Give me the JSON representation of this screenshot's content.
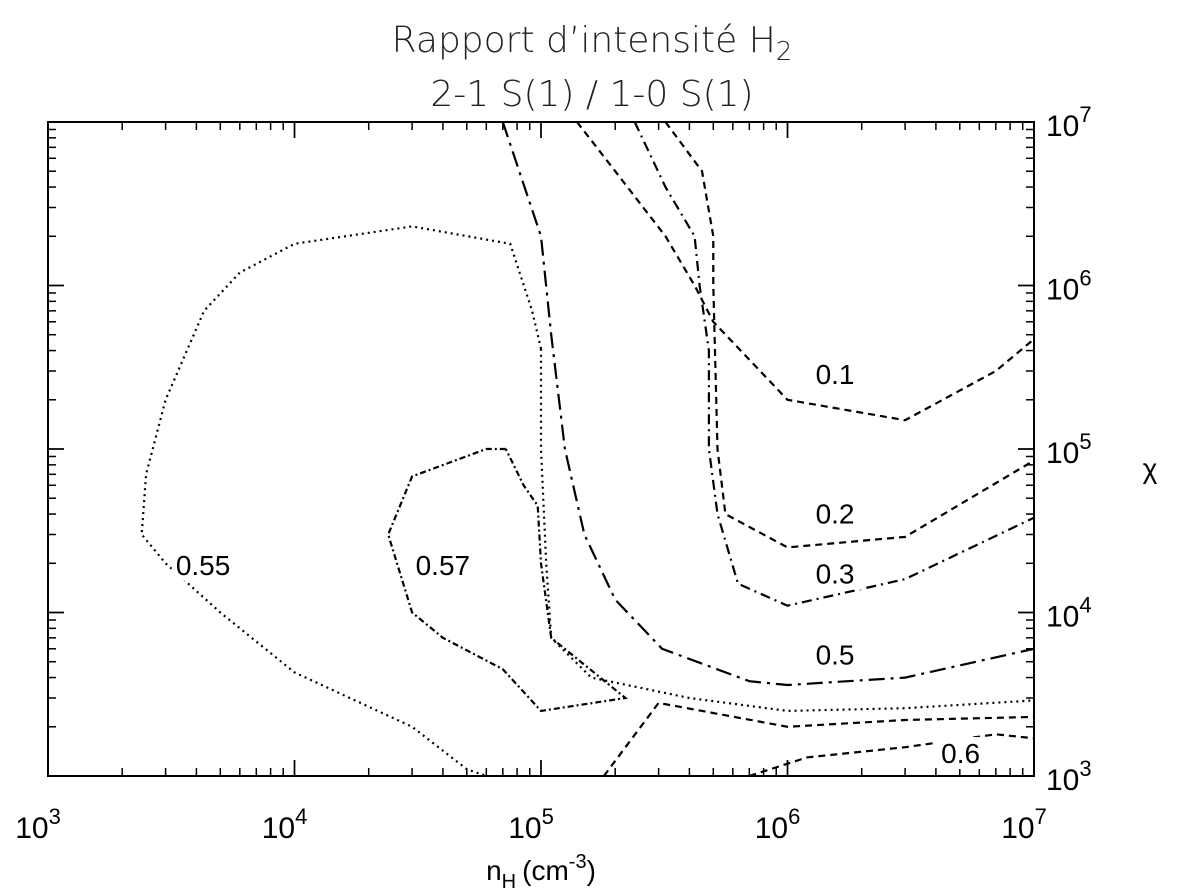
{
  "chart_data": {
    "type": "contour",
    "title": "Rapport d’intensité H",
    "title_subscript": "2",
    "subtitle": "2-1 S(1) / 1-0 S(1)",
    "xlabel": "n",
    "xlabel_subscript": "H",
    "xlabel_unit": "(cm",
    "xlabel_unit_exp": "-3",
    "xlabel_unit_close": ")",
    "ylabel": "χ",
    "xscale": "log",
    "yscale": "log",
    "xlim": [
      1000,
      10000000
    ],
    "ylim": [
      1000,
      10000000
    ],
    "x_ticks": [
      {
        "value": 1000,
        "base": "10",
        "exp": "3"
      },
      {
        "value": 10000,
        "base": "10",
        "exp": "4"
      },
      {
        "value": 100000,
        "base": "10",
        "exp": "5"
      },
      {
        "value": 1000000,
        "base": "10",
        "exp": "6"
      },
      {
        "value": 10000000,
        "base": "10",
        "exp": "7"
      }
    ],
    "y_ticks": [
      {
        "value": 1000,
        "base": "10",
        "exp": "3"
      },
      {
        "value": 10000,
        "base": "10",
        "exp": "4"
      },
      {
        "value": 100000,
        "base": "10",
        "exp": "5"
      },
      {
        "value": 1000000,
        "base": "10",
        "exp": "6"
      },
      {
        "value": 10000000,
        "base": "10",
        "exp": "7"
      }
    ],
    "y_axis_side": "right",
    "grid": false,
    "contours": [
      {
        "level": "0.1",
        "style": "dashed",
        "points": [
          [
            140000,
            10000000
          ],
          [
            200000,
            5000000
          ],
          [
            320000,
            2000000
          ],
          [
            420000,
            1000000
          ],
          [
            500000,
            600000
          ],
          [
            1000000,
            200000
          ],
          [
            3000000,
            150000
          ],
          [
            7000000,
            300000
          ],
          [
            10000000,
            470000
          ]
        ],
        "label": {
          "text": "0.1",
          "x": 1300000,
          "y": 250000
        }
      },
      {
        "level": "0.2",
        "style": "dashed",
        "points": [
          [
            320000,
            10000000
          ],
          [
            450000,
            5000000
          ],
          [
            500000,
            2000000
          ],
          [
            500000,
            1000000
          ],
          [
            520000,
            100000
          ],
          [
            560000,
            40000
          ],
          [
            1000000,
            25000
          ],
          [
            3000000,
            29000
          ],
          [
            10000000,
            85000
          ]
        ],
        "label": {
          "text": "0.2",
          "x": 1300000,
          "y": 35000
        }
      },
      {
        "level": "0.3",
        "style": "dashdot",
        "points": [
          [
            240000,
            10000000
          ],
          [
            320000,
            4000000
          ],
          [
            420000,
            2000000
          ],
          [
            440000,
            1000000
          ],
          [
            480000,
            400000
          ],
          [
            480000,
            100000
          ],
          [
            520000,
            40000
          ],
          [
            630000,
            15000
          ],
          [
            1000000,
            11000
          ],
          [
            3000000,
            16000
          ],
          [
            10000000,
            38000
          ]
        ],
        "label": {
          "text": "0.3",
          "x": 1300000,
          "y": 15000
        }
      },
      {
        "level": "0.5",
        "style": "dashdotlong",
        "points": [
          [
            70000,
            10000000
          ],
          [
            100000,
            2000000
          ],
          [
            110000,
            500000
          ],
          [
            125000,
            100000
          ],
          [
            150000,
            30000
          ],
          [
            200000,
            12000
          ],
          [
            310000,
            6000
          ],
          [
            700000,
            3800
          ],
          [
            1000000,
            3600
          ],
          [
            3000000,
            4000
          ],
          [
            10000000,
            6000
          ]
        ],
        "label": {
          "text": "0.5",
          "x": 1300000,
          "y": 4800
        }
      },
      {
        "level": "0.55",
        "style": "dotted",
        "points": [
          [
            100000,
            410000
          ],
          [
            92000,
            700000
          ],
          [
            75000,
            1800000
          ],
          [
            30000,
            2300000
          ],
          [
            10000,
            1800000
          ],
          [
            6000,
            1200000
          ],
          [
            4300,
            700000
          ],
          [
            3000,
            200000
          ],
          [
            2500,
            70000
          ],
          [
            2400,
            30000
          ],
          [
            3000,
            20000
          ],
          [
            5000,
            10000
          ],
          [
            10000,
            4300
          ],
          [
            30000,
            2000
          ],
          [
            50000,
            1100
          ],
          [
            60000,
            1000
          ]
        ],
        "closing_points": [
          [
            100000,
            410000
          ],
          [
            100000,
            100000
          ],
          [
            105000,
            20000
          ],
          [
            110000,
            7000
          ],
          [
            160000,
            4000
          ],
          [
            400000,
            3000
          ],
          [
            1000000,
            2500
          ],
          [
            3000000,
            2600
          ],
          [
            10000000,
            2900
          ]
        ],
        "label": {
          "text": "0.55",
          "x": 3300,
          "y": 17000
        }
      },
      {
        "level": "0.57",
        "style": "dashdotdense",
        "points": [
          [
            72000,
            100000
          ],
          [
            60000,
            100000
          ],
          [
            30000,
            68000
          ],
          [
            24000,
            30000
          ],
          [
            30000,
            10000
          ],
          [
            40000,
            7000
          ],
          [
            70000,
            4500
          ],
          [
            100000,
            2500
          ],
          [
            220000,
            3000
          ],
          [
            110000,
            7000
          ],
          [
            100000,
            20000
          ],
          [
            97000,
            45000
          ],
          [
            85000,
            60000
          ],
          [
            72000,
            100000
          ]
        ],
        "label": {
          "text": "0.57",
          "x": 31000,
          "y": 17000
        }
      },
      {
        "level": "0.6",
        "style": "dashed",
        "points": [
          [
            180000,
            1000
          ],
          [
            300000,
            2800
          ],
          [
            1000000,
            2000
          ],
          [
            3000000,
            2200
          ],
          [
            10000000,
            2300
          ]
        ],
        "second_branch": [
          [
            700000,
            1000
          ],
          [
            1200000,
            1300
          ],
          [
            3000000,
            1500
          ],
          [
            7000000,
            1800
          ],
          [
            10000000,
            1700
          ]
        ],
        "label": {
          "text": "0.6",
          "x": 4200000,
          "y": 1200
        }
      }
    ]
  }
}
